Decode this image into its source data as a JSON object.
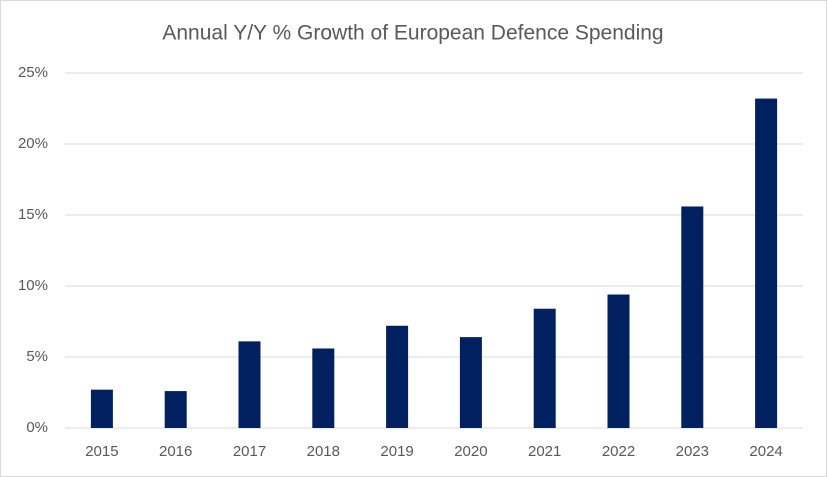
{
  "chart_data": {
    "type": "bar",
    "title": "Annual Y/Y % Growth of European Defence Spending",
    "categories": [
      "2015",
      "2016",
      "2017",
      "2018",
      "2019",
      "2020",
      "2021",
      "2022",
      "2023",
      "2024"
    ],
    "values": [
      2.7,
      2.6,
      6.1,
      5.6,
      7.2,
      6.4,
      8.4,
      9.4,
      15.6,
      23.2
    ],
    "color": "#002060",
    "ylim": [
      0,
      25
    ],
    "yticks": [
      {
        "value": 0,
        "label": "0%"
      },
      {
        "value": 5,
        "label": "5%"
      },
      {
        "value": 10,
        "label": "10%"
      },
      {
        "value": 15,
        "label": "15%"
      },
      {
        "value": 20,
        "label": "20%"
      },
      {
        "value": 25,
        "label": "25%"
      }
    ],
    "grid": true
  }
}
